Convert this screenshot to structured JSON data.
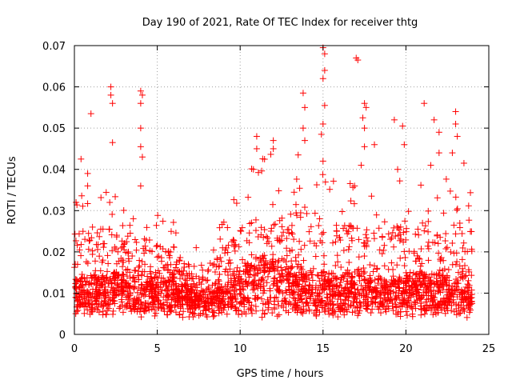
{
  "chart_data": {
    "type": "scatter",
    "title": "Day 190 of 2021, Rate Of TEC Index for receiver thtg",
    "xlabel": "GPS time / hours",
    "ylabel": "ROTI / TECUs",
    "xlim": [
      0,
      25
    ],
    "ylim": [
      0,
      0.07
    ],
    "xticks": [
      0,
      5,
      10,
      15,
      20,
      25
    ],
    "yticks": [
      0,
      0.01,
      0.02,
      0.03,
      0.04,
      0.05,
      0.06,
      0.07
    ],
    "xtick_labels": [
      "0",
      "5",
      "10",
      "15",
      "20",
      "25"
    ],
    "ytick_labels": [
      "0",
      "0.01",
      "0.02",
      "0.03",
      "0.04",
      "0.05",
      "0.06",
      "0.07"
    ],
    "grid": true,
    "marker": "+",
    "color": "#ff0000",
    "x_range_hours": [
      0,
      24
    ],
    "baseline_profile": {
      "hours": [
        0,
        2,
        4,
        6,
        7.5,
        9,
        10.5,
        12,
        13.5,
        15,
        16.5,
        18,
        20,
        22,
        24
      ],
      "median_roti": [
        0.009,
        0.01,
        0.01,
        0.009,
        0.007,
        0.008,
        0.012,
        0.013,
        0.011,
        0.01,
        0.01,
        0.009,
        0.01,
        0.01,
        0.009
      ],
      "upper_roti": [
        0.025,
        0.026,
        0.024,
        0.02,
        0.015,
        0.02,
        0.03,
        0.032,
        0.03,
        0.028,
        0.027,
        0.025,
        0.027,
        0.028,
        0.025
      ]
    },
    "outliers": [
      {
        "x": 0.4,
        "y": 0.0425
      },
      {
        "x": 0.8,
        "y": 0.039
      },
      {
        "x": 0.8,
        "y": 0.036
      },
      {
        "x": 1.0,
        "y": 0.0535
      },
      {
        "x": 2.2,
        "y": 0.06
      },
      {
        "x": 2.2,
        "y": 0.058
      },
      {
        "x": 2.3,
        "y": 0.056
      },
      {
        "x": 2.3,
        "y": 0.0465
      },
      {
        "x": 4.0,
        "y": 0.059
      },
      {
        "x": 4.1,
        "y": 0.058
      },
      {
        "x": 4.0,
        "y": 0.056
      },
      {
        "x": 4.0,
        "y": 0.05
      },
      {
        "x": 4.0,
        "y": 0.0455
      },
      {
        "x": 4.1,
        "y": 0.043
      },
      {
        "x": 4.0,
        "y": 0.036
      },
      {
        "x": 11.0,
        "y": 0.048
      },
      {
        "x": 11.0,
        "y": 0.045
      },
      {
        "x": 12.0,
        "y": 0.047
      },
      {
        "x": 12.0,
        "y": 0.045
      },
      {
        "x": 13.5,
        "y": 0.0435
      },
      {
        "x": 13.8,
        "y": 0.0585
      },
      {
        "x": 13.9,
        "y": 0.055
      },
      {
        "x": 13.8,
        "y": 0.05
      },
      {
        "x": 13.9,
        "y": 0.047
      },
      {
        "x": 15.0,
        "y": 0.0695
      },
      {
        "x": 15.1,
        "y": 0.068
      },
      {
        "x": 15.1,
        "y": 0.064
      },
      {
        "x": 15.0,
        "y": 0.062
      },
      {
        "x": 15.1,
        "y": 0.0555
      },
      {
        "x": 15.0,
        "y": 0.051
      },
      {
        "x": 14.9,
        "y": 0.0485
      },
      {
        "x": 15.0,
        "y": 0.042
      },
      {
        "x": 17.0,
        "y": 0.067
      },
      {
        "x": 17.1,
        "y": 0.0665
      },
      {
        "x": 17.5,
        "y": 0.056
      },
      {
        "x": 17.6,
        "y": 0.055
      },
      {
        "x": 17.4,
        "y": 0.0525
      },
      {
        "x": 17.5,
        "y": 0.05
      },
      {
        "x": 17.5,
        "y": 0.0455
      },
      {
        "x": 17.3,
        "y": 0.041
      },
      {
        "x": 19.3,
        "y": 0.052
      },
      {
        "x": 19.8,
        "y": 0.0505
      },
      {
        "x": 19.9,
        "y": 0.046
      },
      {
        "x": 19.5,
        "y": 0.04
      },
      {
        "x": 21.1,
        "y": 0.056
      },
      {
        "x": 21.7,
        "y": 0.052
      },
      {
        "x": 22.0,
        "y": 0.049
      },
      {
        "x": 22.0,
        "y": 0.044
      },
      {
        "x": 21.5,
        "y": 0.041
      },
      {
        "x": 23.0,
        "y": 0.054
      },
      {
        "x": 23.0,
        "y": 0.051
      },
      {
        "x": 23.1,
        "y": 0.048
      },
      {
        "x": 22.8,
        "y": 0.044
      },
      {
        "x": 23.5,
        "y": 0.0415
      },
      {
        "x": 0.1,
        "y": 0.032
      },
      {
        "x": 10.8,
        "y": 0.04
      },
      {
        "x": 18.1,
        "y": 0.046
      }
    ]
  }
}
